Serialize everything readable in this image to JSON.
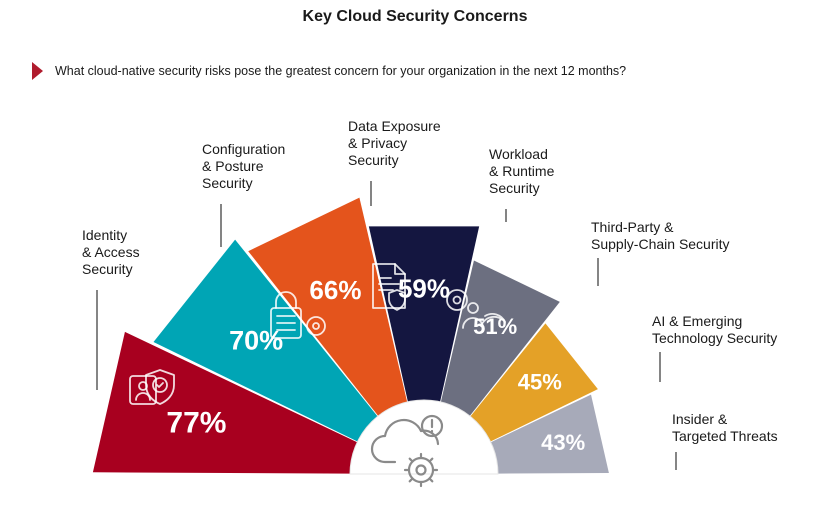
{
  "title": "Key Cloud Security Concerns",
  "question": "What cloud-native security risks pose the greatest concern for your organization in the next 12 months?",
  "colors": {
    "accent": "#b01c2e",
    "segments": [
      "#a8001f",
      "#00a5b5",
      "#e4541c",
      "#141640",
      "#6c6f80",
      "#e4a127",
      "#a7aab9"
    ]
  },
  "chart_data": {
    "type": "radial-bar",
    "title": "Key Cloud Security Concerns",
    "unit": "%",
    "categories": [
      "Identity & Access Security",
      "Configuration & Posture Security",
      "Data Exposure & Privacy Security",
      "Workload & Runtime Security",
      "Third-Party & Supply-Chain Security",
      "AI & Emerging Technology Security",
      "Insider & Targeted Threats"
    ],
    "values": [
      77,
      70,
      66,
      59,
      51,
      45,
      43
    ],
    "value_labels": [
      "77%",
      "70%",
      "66%",
      "59%",
      "51%",
      "45%",
      "43%"
    ],
    "label_lines": [
      [
        "Identity",
        "& Access",
        "Security"
      ],
      [
        "Configuration",
        "& Posture",
        "Security"
      ],
      [
        "Data Exposure",
        "& Privacy",
        "Security"
      ],
      [
        "Workload",
        "& Runtime",
        "Security"
      ],
      [
        "Third-Party &",
        "Supply-Chain Security"
      ],
      [
        "AI & Emerging",
        "Technology Security"
      ],
      [
        "Insider &",
        "Targeted Threats"
      ]
    ],
    "icons": [
      "identity-shield-icon",
      "padlock-gear-icon",
      "document-shield-icon",
      "people-gear-icon",
      "none",
      "none",
      "none"
    ],
    "center_icon": "cloud-gear-alert-icon"
  }
}
